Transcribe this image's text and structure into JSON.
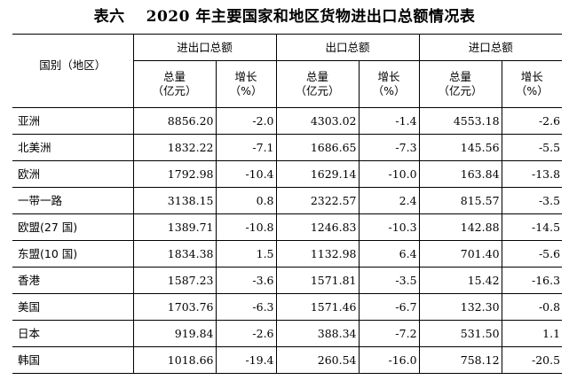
{
  "title": {
    "number": "表六",
    "text": "2020 年主要国家和地区货物进出口总额情况表"
  },
  "header": {
    "region_label": "国别（地区）",
    "groups": [
      "进出口总额",
      "出口总额",
      "进口总额"
    ],
    "value_line1": "总量",
    "value_line2": "（亿元）",
    "growth_line1": "增长",
    "growth_line2": "（%）"
  },
  "rows": [
    {
      "name": "亚洲",
      "total": "8856.20",
      "total_g": "-2.0",
      "exp": "4303.02",
      "exp_g": "-1.4",
      "imp": "4553.18",
      "imp_g": "-2.6"
    },
    {
      "name": "北美洲",
      "total": "1832.22",
      "total_g": "-7.1",
      "exp": "1686.65",
      "exp_g": "-7.3",
      "imp": "145.56",
      "imp_g": "-5.5"
    },
    {
      "name": "欧洲",
      "total": "1792.98",
      "total_g": "-10.4",
      "exp": "1629.14",
      "exp_g": "-10.0",
      "imp": "163.84",
      "imp_g": "-13.8"
    },
    {
      "name": "一带一路",
      "total": "3138.15",
      "total_g": "0.8",
      "exp": "2322.57",
      "exp_g": "2.4",
      "imp": "815.57",
      "imp_g": "-3.5"
    },
    {
      "name": "欧盟(27 国)",
      "total": "1389.71",
      "total_g": "-10.8",
      "exp": "1246.83",
      "exp_g": "-10.3",
      "imp": "142.88",
      "imp_g": "-14.5"
    },
    {
      "name": "东盟(10 国)",
      "total": "1834.38",
      "total_g": "1.5",
      "exp": "1132.98",
      "exp_g": "6.4",
      "imp": "701.40",
      "imp_g": "-5.6"
    },
    {
      "name": "香港",
      "total": "1587.23",
      "total_g": "-3.6",
      "exp": "1571.81",
      "exp_g": "-3.5",
      "imp": "15.42",
      "imp_g": "-16.3"
    },
    {
      "name": "美国",
      "total": "1703.76",
      "total_g": "-6.3",
      "exp": "1571.46",
      "exp_g": "-6.7",
      "imp": "132.30",
      "imp_g": "-0.8"
    },
    {
      "name": "日本",
      "total": "919.84",
      "total_g": "-2.6",
      "exp": "388.34",
      "exp_g": "-7.2",
      "imp": "531.50",
      "imp_g": "1.1"
    },
    {
      "name": "韩国",
      "total": "1018.66",
      "total_g": "-19.4",
      "exp": "260.54",
      "exp_g": "-16.0",
      "imp": "758.12",
      "imp_g": "-20.5"
    }
  ]
}
